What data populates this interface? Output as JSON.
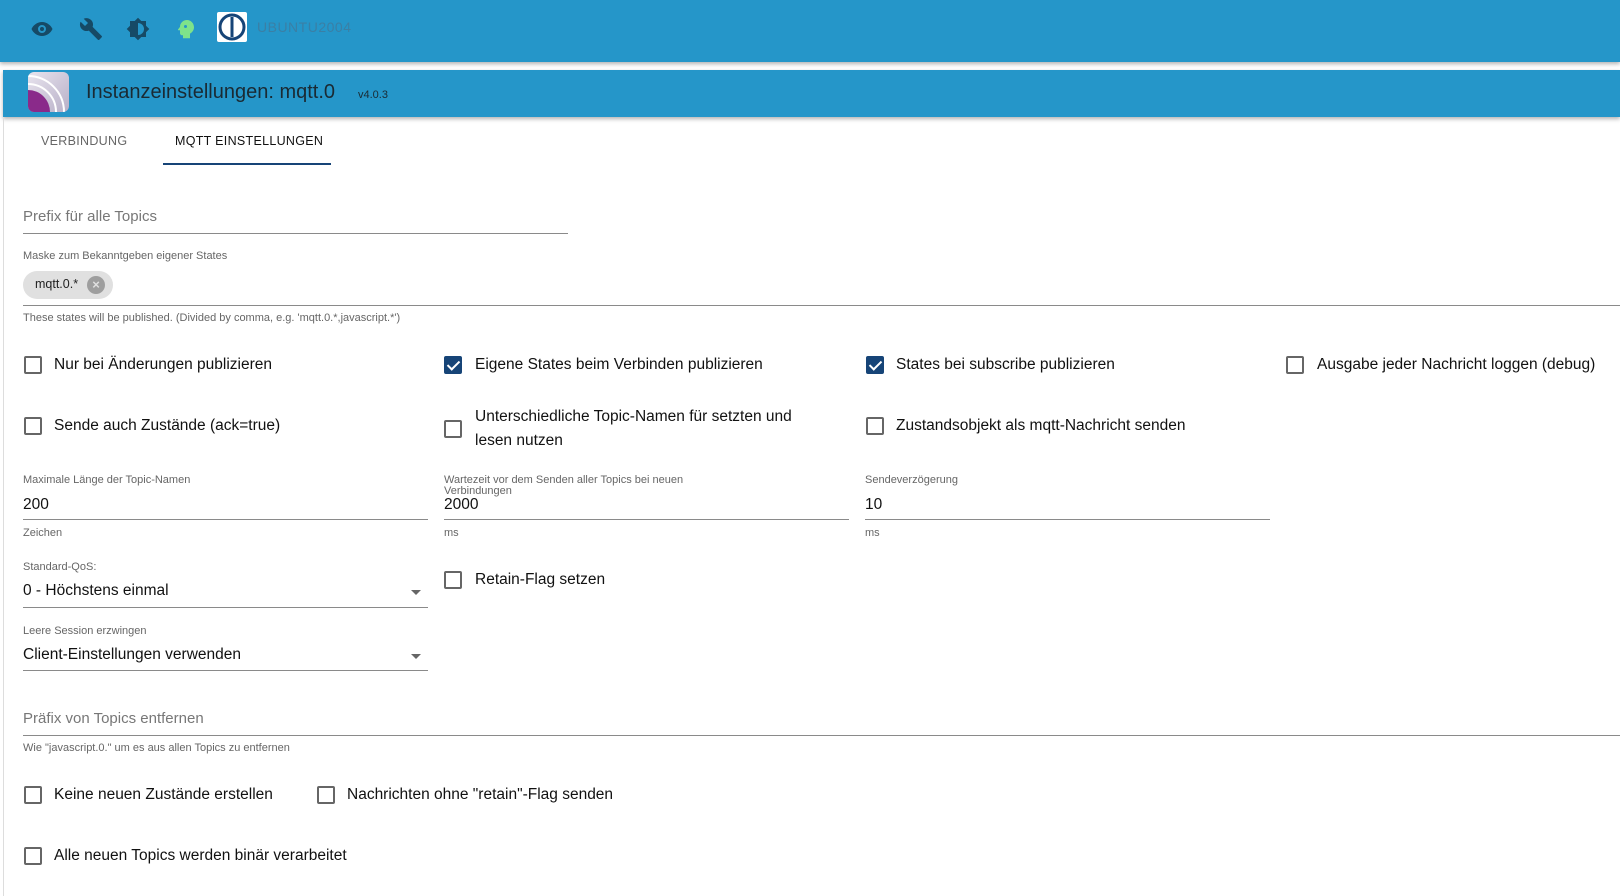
{
  "topbar": {
    "icons": [
      "eye-icon",
      "wrench-icon",
      "brightness-icon",
      "head-expert-icon",
      "iobroker-logo"
    ],
    "hostname": "UBUNTU2004",
    "colors": {
      "bar": "#2596c9",
      "expert": "#7ee38a"
    }
  },
  "header": {
    "title": "Instanzeinstellungen: mqtt.0",
    "version": "v4.0.3"
  },
  "tabs": [
    {
      "label": "VERBINDUNG",
      "active": false
    },
    {
      "label": "MQTT EINSTELLUNGEN",
      "active": true
    }
  ],
  "form": {
    "prefix": {
      "placeholder": "Prefix für alle Topics",
      "value": ""
    },
    "mask": {
      "label": "Maske zum Bekanntgeben eigener States",
      "chips": [
        "mqtt.0.*"
      ],
      "helper": "These states will be published. (Divided by comma, e.g. 'mqtt.0.*,javascript.*')"
    },
    "checkboxes_row1": [
      {
        "label": "Nur bei Änderungen publizieren",
        "checked": false
      },
      {
        "label": "Eigene States beim Verbinden publizieren",
        "checked": true
      },
      {
        "label": "States bei subscribe publizieren",
        "checked": true
      },
      {
        "label": "Ausgabe jeder Nachricht loggen (debug)",
        "checked": false
      }
    ],
    "checkboxes_row2": [
      {
        "label": "Sende auch Zustände (ack=true)",
        "checked": false
      },
      {
        "label": "Unterschiedliche Topic-Namen für setzten und",
        "label2": "lesen nutzen",
        "checked": false
      },
      {
        "label": "Zustandsobjekt als mqtt-Nachricht senden",
        "checked": false
      }
    ],
    "numbers": [
      {
        "label": "Maximale Länge der Topic-Namen",
        "value": "200",
        "helper": "Zeichen"
      },
      {
        "label": "Wartezeit vor dem Senden aller Topics bei neuen",
        "label2": "Verbindungen",
        "value": "2000",
        "helper": "ms"
      },
      {
        "label": "Sendeverzögerung",
        "value": "10",
        "helper": "ms"
      }
    ],
    "qos": {
      "label": "Standard-QoS:",
      "value": "0 - Höchstens einmal"
    },
    "retain": {
      "label": "Retain-Flag setzen",
      "checked": false
    },
    "session": {
      "label": "Leere Session erzwingen",
      "value": "Client-Einstellungen verwenden"
    },
    "remove_prefix": {
      "placeholder": "Präfix von Topics entfernen",
      "helper": "Wie \"javascript.0.\" um es aus allen Topics zu entfernen"
    },
    "bottom": [
      {
        "label": "Keine neuen Zustände erstellen",
        "checked": false
      },
      {
        "label": "Nachrichten ohne \"retain\"-Flag senden",
        "checked": false
      },
      {
        "label": "Alle neuen Topics werden binär verarbeitet",
        "checked": false
      }
    ]
  }
}
